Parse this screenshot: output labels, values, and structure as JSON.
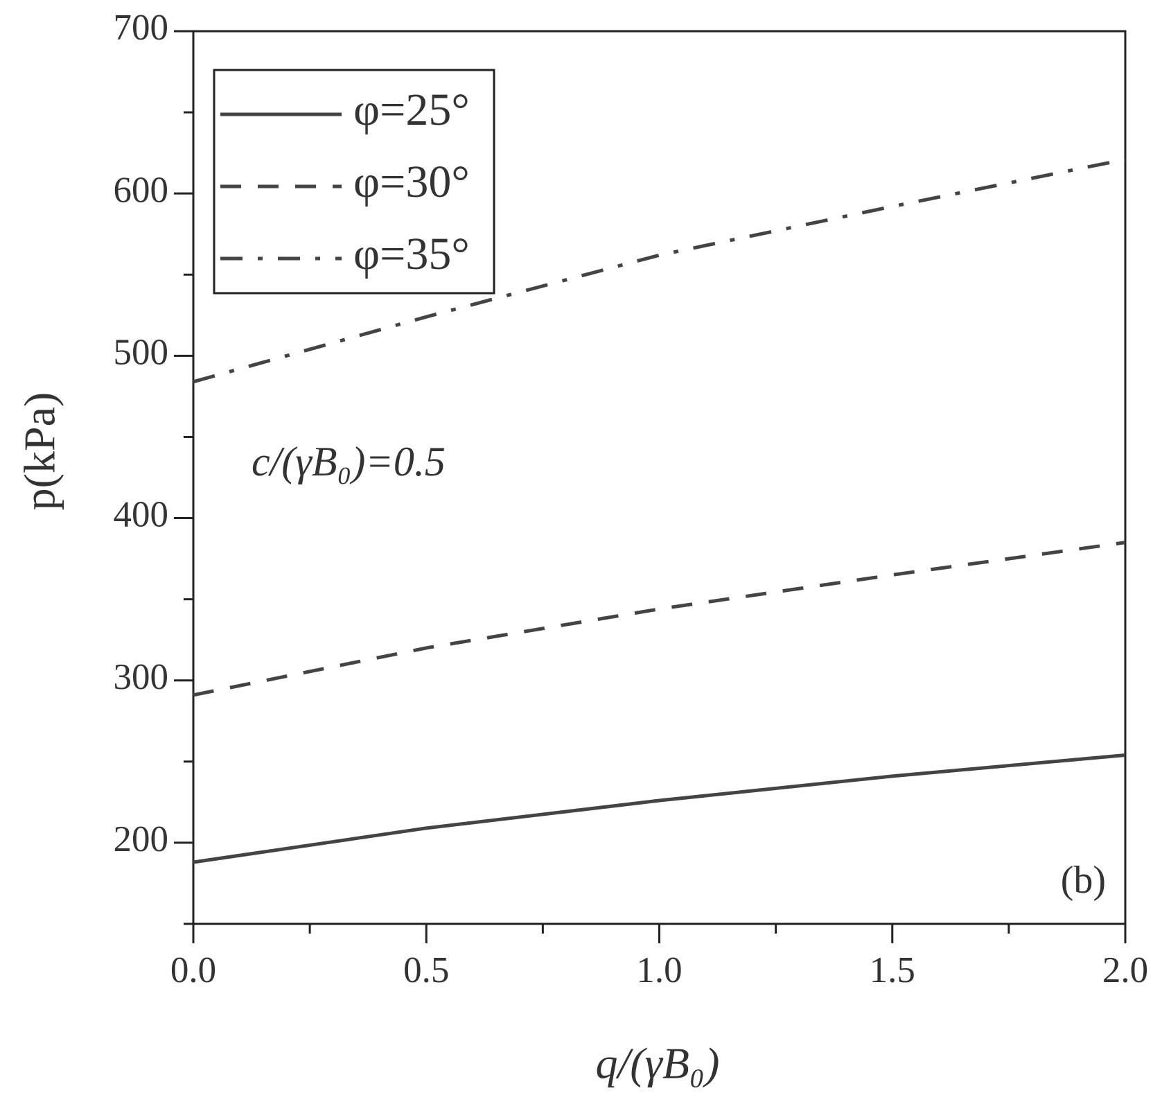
{
  "chart_data": {
    "type": "line",
    "x_label": "q/(γB₀)",
    "y_label": "p(kPa)",
    "annotations": [
      "c/(γB₀)=0.5",
      "(b)"
    ],
    "x": [
      0,
      0.5,
      1.0,
      1.5,
      2.0
    ],
    "series": [
      {
        "name": "φ=25°",
        "color": "#444444",
        "dash": "solid",
        "values": [
          188,
          209,
          226,
          241,
          254
        ]
      },
      {
        "name": "φ=30°",
        "color": "#444444",
        "dash": "dashed",
        "values": [
          291,
          320,
          344,
          365,
          385
        ]
      },
      {
        "name": "φ=35°",
        "color": "#444444",
        "dash": "dashdot",
        "values": [
          484,
          524,
          562,
          592,
          621
        ]
      }
    ],
    "xlim": [
      0,
      2
    ],
    "ylim": [
      150,
      700
    ],
    "xticks": [
      {
        "value": 0,
        "label": "0.0"
      },
      0.5,
      {
        "value": 1,
        "label": "1.0"
      },
      1.5,
      {
        "value": 2,
        "label": "2.0"
      }
    ],
    "xminorticks": [
      0.25,
      0.75,
      1.25,
      1.75
    ],
    "yticks": [
      200,
      300,
      400,
      500,
      600,
      700
    ],
    "yminorticks": [
      150,
      250,
      350,
      450,
      550,
      650
    ],
    "grid": false,
    "legend": "upper left"
  }
}
